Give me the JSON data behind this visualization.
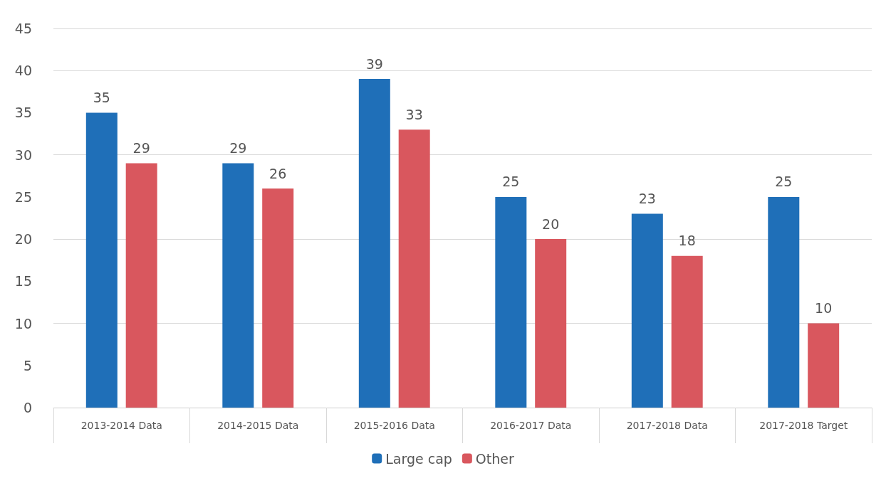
{
  "chart_data": {
    "type": "bar",
    "categories": [
      "2013-2014 Data",
      "2014-2015 Data",
      "2015-2016 Data",
      "2016-2017 Data",
      "2017-2018 Data",
      "2017-2018 Target"
    ],
    "series": [
      {
        "name": "Large cap",
        "color": "#1f6fb8",
        "values": [
          35,
          29,
          39,
          25,
          23,
          25
        ]
      },
      {
        "name": "Other",
        "color": "#d9575e",
        "values": [
          29,
          26,
          33,
          20,
          18,
          10
        ]
      }
    ],
    "ylim": [
      0,
      45
    ],
    "yticks": [
      0,
      5,
      10,
      15,
      20,
      25,
      30,
      35,
      40,
      45
    ],
    "grid": "y",
    "legend": "bottom",
    "data_labels": true
  }
}
